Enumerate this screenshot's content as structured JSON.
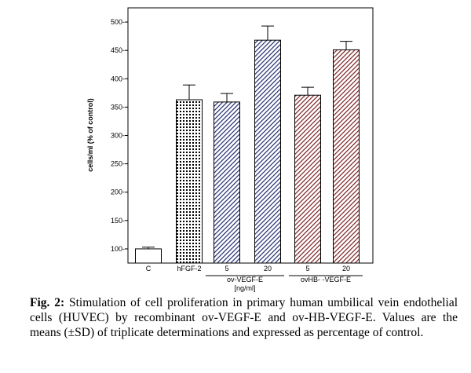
{
  "chart_data": {
    "type": "bar",
    "ylabel": "cells/ml (% of control)",
    "ylim": [
      75,
      525
    ],
    "yticks": [
      100,
      150,
      200,
      250,
      300,
      350,
      400,
      450,
      500
    ],
    "ytick_labels": [
      "100-",
      "150-",
      "200-",
      "250-",
      "300-",
      "350-",
      "400-",
      "450-",
      "500-"
    ],
    "categories": [
      "C",
      "hFGF-2",
      "5",
      "20",
      "5",
      "20"
    ],
    "values": [
      100,
      363,
      359,
      468,
      371,
      451
    ],
    "errors": [
      3,
      26,
      15,
      25,
      14,
      15
    ],
    "fills": [
      "none",
      "dots",
      "hatch-blue",
      "hatch-blue",
      "hatch-red",
      "hatch-red"
    ],
    "colors": {
      "hatch_blue": "#1f2a6e",
      "hatch_red": "#7a1f1f",
      "axis": "#000000"
    },
    "groups": [
      {
        "label": "ov-VEGF-E",
        "unit": "[ng/ml]"
      },
      {
        "label": "ovHB- -VEGF-E"
      }
    ]
  },
  "caption": {
    "prefix": "Fig. 2:",
    "text": " Stimulation of cell proliferation in primary human umbilical vein endothelial cells (HUVEC) by recombinant ov-VEGF-E and ov-HB-VEGF-E. Values are the means (±SD) of triplicate determinations and expressed as percentage of control."
  }
}
